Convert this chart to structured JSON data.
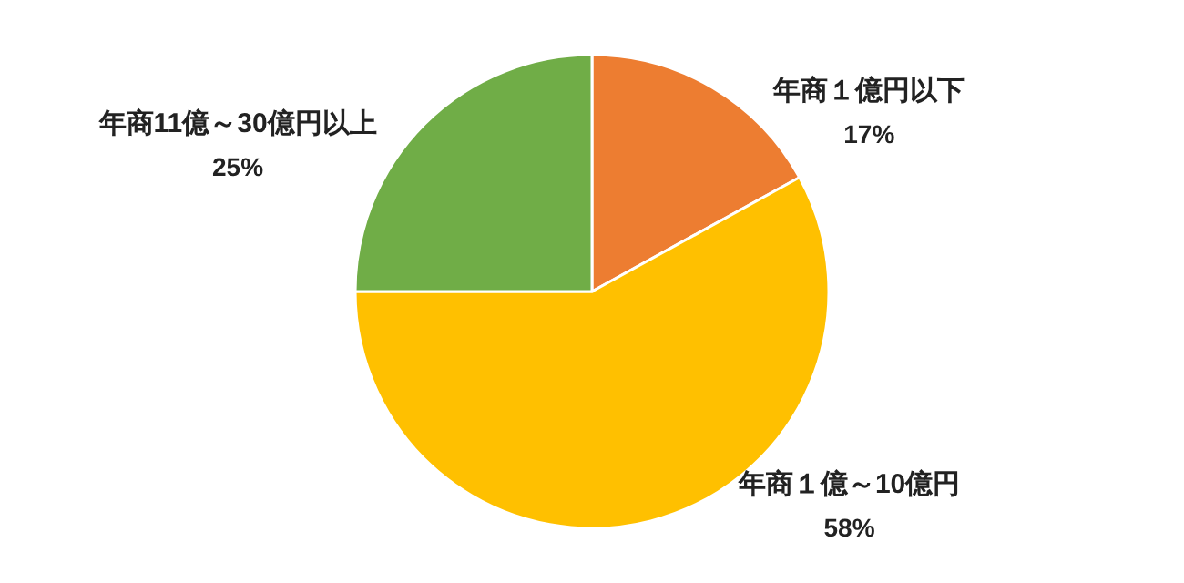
{
  "chart_data": {
    "type": "pie",
    "categories": [
      "年商１億円以下",
      "年商１億～10億円",
      "年商11億～30億円以上"
    ],
    "values": [
      17,
      58,
      25
    ],
    "value_labels": [
      "17%",
      "58%",
      "25%"
    ],
    "colors": [
      "#ed7d31",
      "#ffc000",
      "#70ad47"
    ],
    "legend": false
  }
}
